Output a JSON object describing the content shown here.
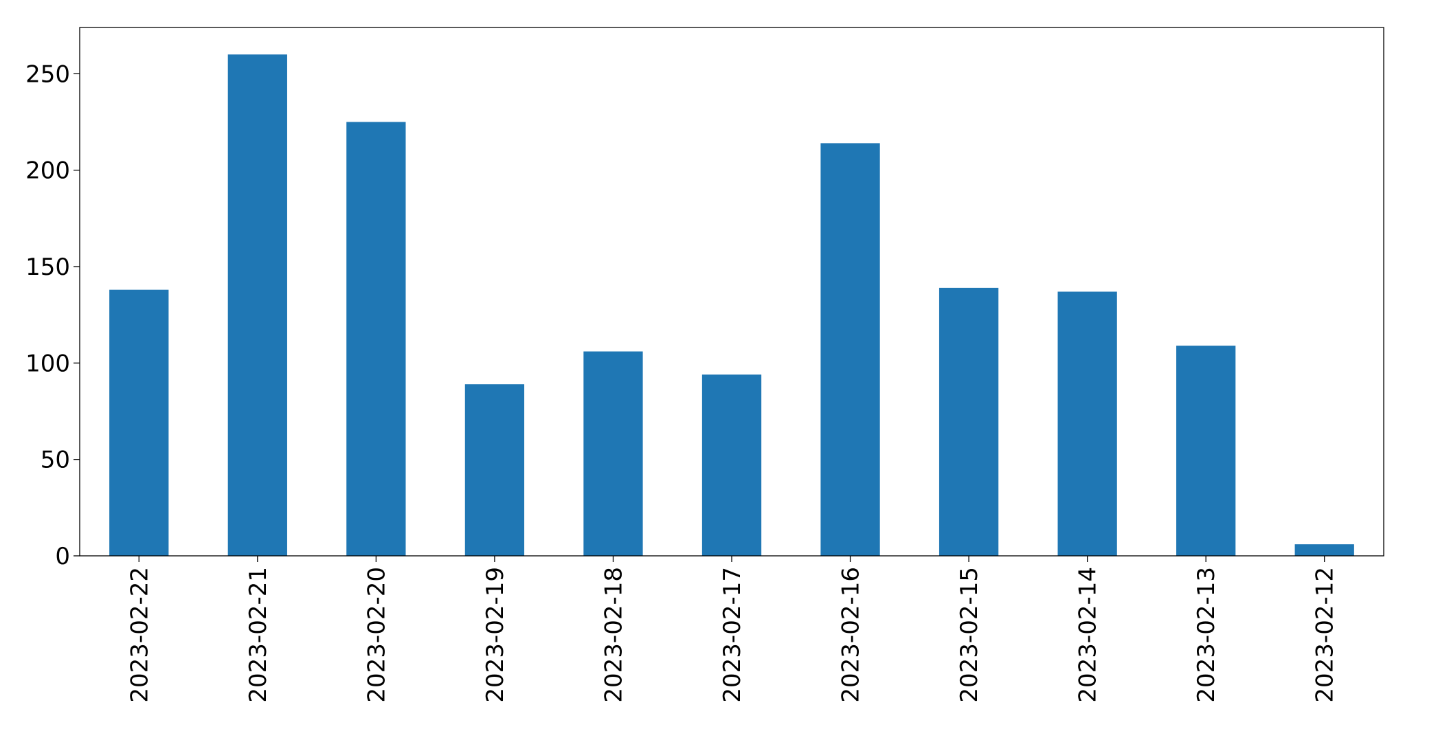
{
  "chart_data": {
    "type": "bar",
    "categories": [
      "2023-02-22",
      "2023-02-21",
      "2023-02-20",
      "2023-02-19",
      "2023-02-18",
      "2023-02-17",
      "2023-02-16",
      "2023-02-15",
      "2023-02-14",
      "2023-02-13",
      "2023-02-12"
    ],
    "values": [
      138,
      260,
      225,
      89,
      106,
      94,
      214,
      139,
      137,
      109,
      6
    ],
    "color": "#1f77b4",
    "ylim": [
      0,
      274
    ],
    "yticks": [
      0,
      50,
      100,
      150,
      200,
      250
    ],
    "grid": false
  }
}
